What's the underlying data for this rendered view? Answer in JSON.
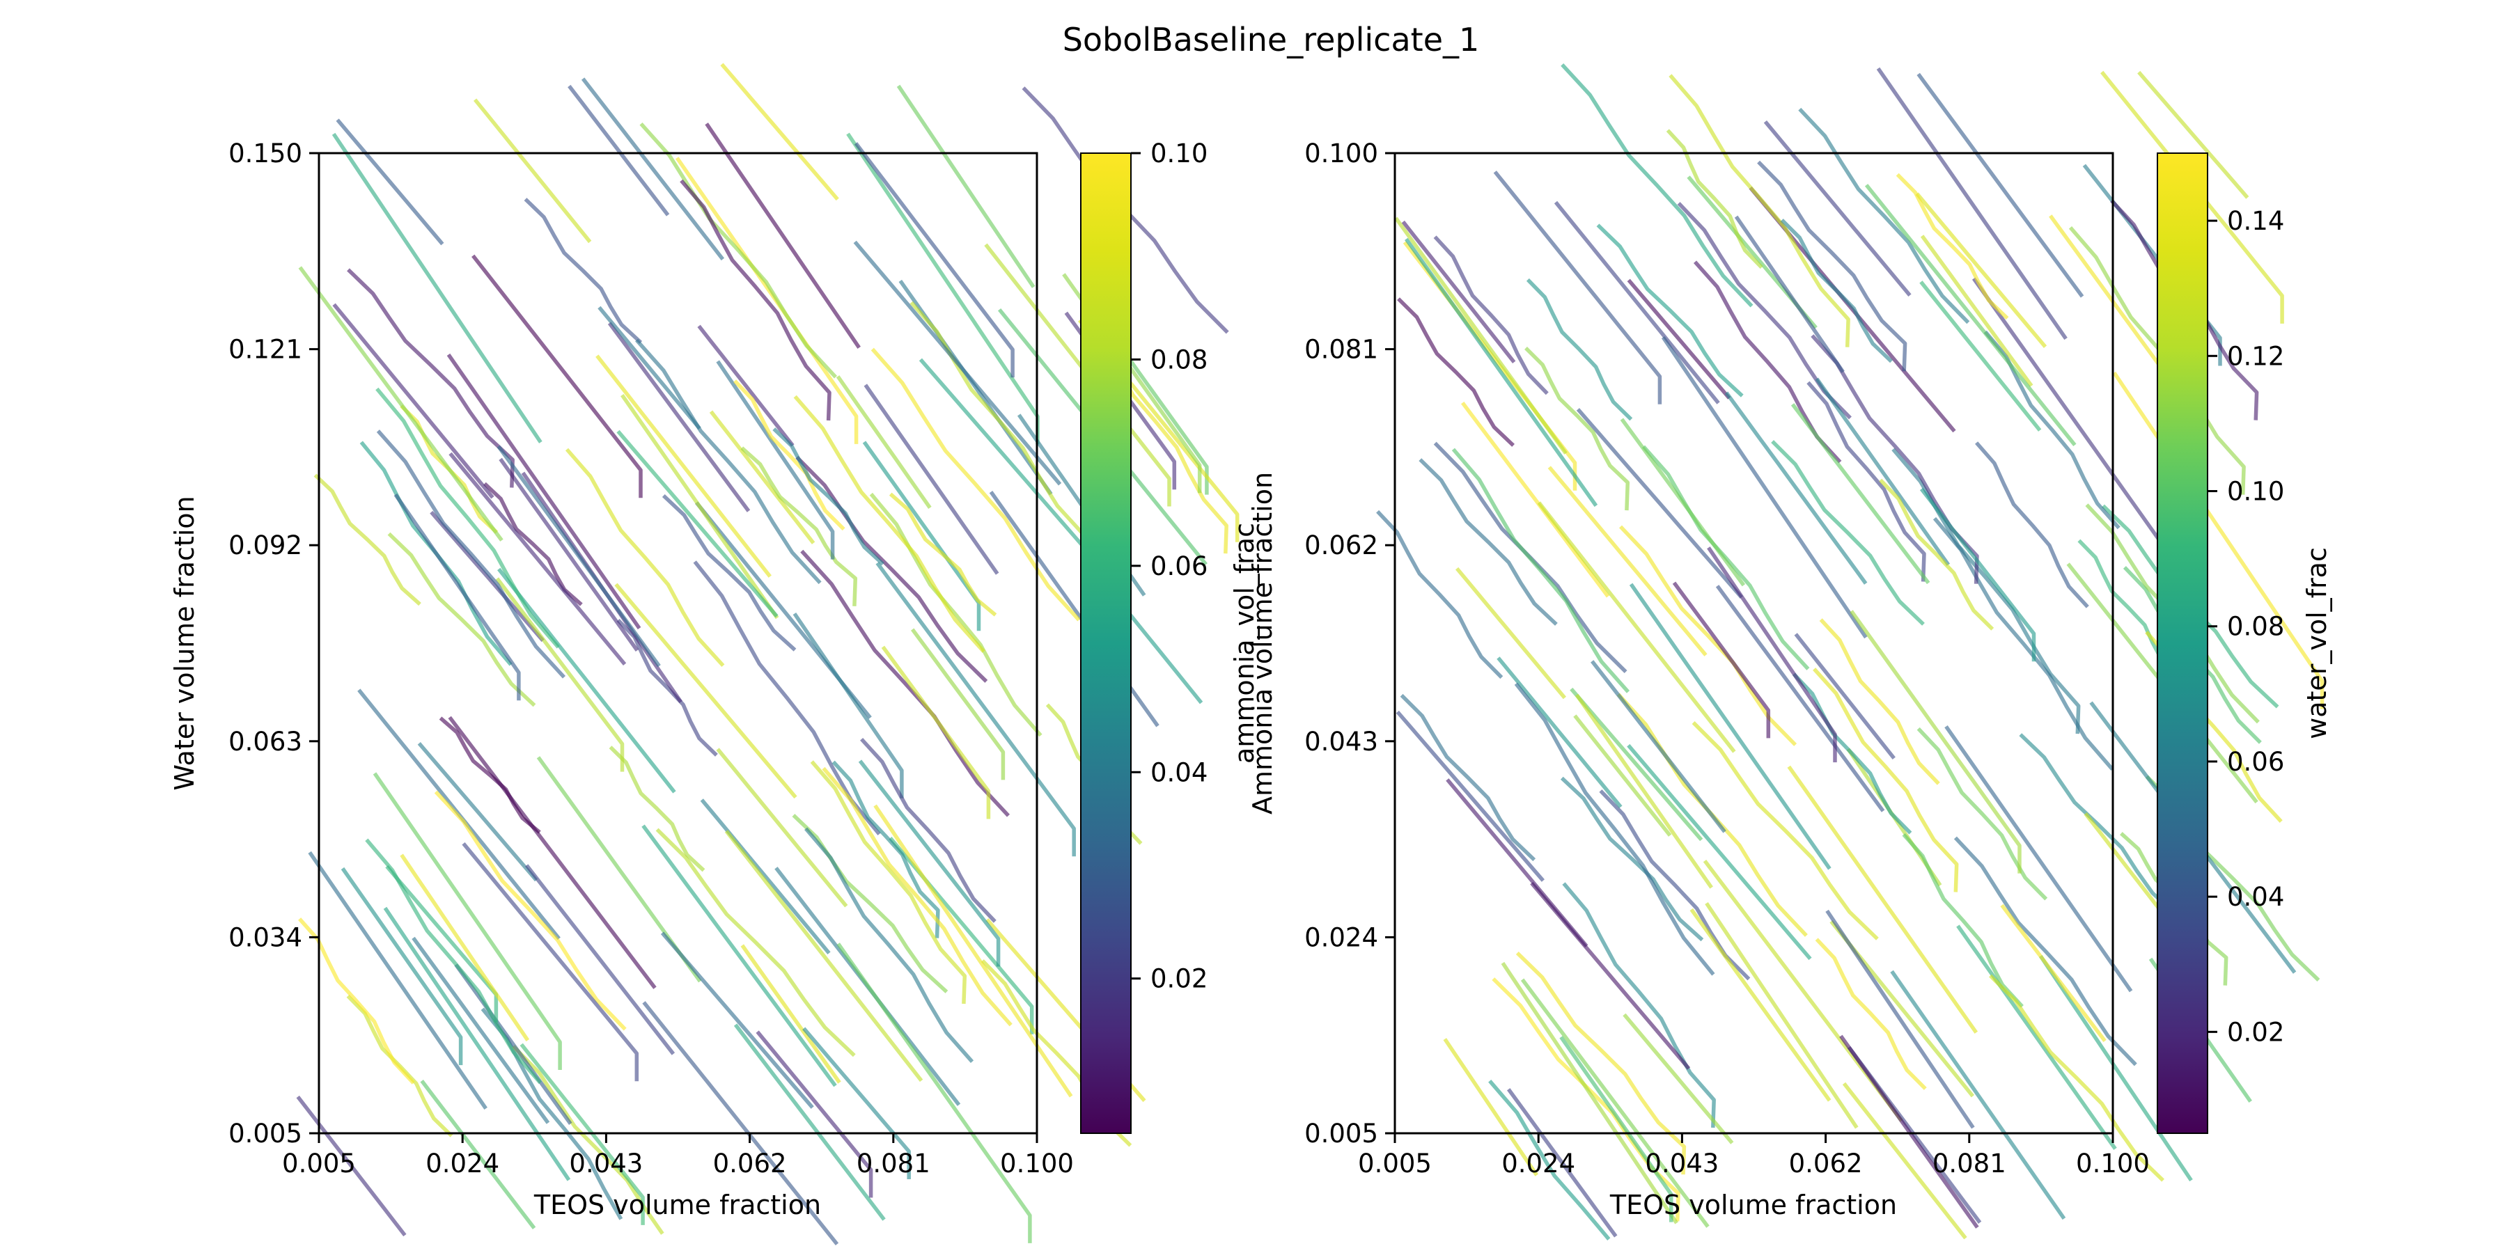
{
  "title": "SobolBaseline_replicate_1",
  "chart_data": [
    {
      "type": "line",
      "panel": "left",
      "xlabel": "TEOS volume fraction",
      "ylabel": "Water volume fraction",
      "xlim": [
        0.005,
        0.1
      ],
      "ylim": [
        0.005,
        0.15
      ],
      "xticks": [
        "0.005",
        "0.024",
        "0.043",
        "0.062",
        "0.081",
        "0.100"
      ],
      "yticks": [
        "0.005",
        "0.034",
        "0.063",
        "0.092",
        "0.121",
        "0.150"
      ],
      "colorbar": {
        "label": "ammonia_vol_frac",
        "colormap": "viridis",
        "range": [
          0.005,
          0.1
        ],
        "ticks": [
          "0.02",
          "0.04",
          "0.06",
          "0.08",
          "0.10"
        ]
      },
      "series_description": "Many short trajectories drifting down-right, each colored by ammonia volume fraction",
      "grid": false
    },
    {
      "type": "line",
      "panel": "right",
      "xlabel": "TEOS volume fraction",
      "ylabel": "Ammonia volume fraction",
      "xlim": [
        0.005,
        0.1
      ],
      "ylim": [
        0.005,
        0.1
      ],
      "xticks": [
        "0.005",
        "0.024",
        "0.043",
        "0.062",
        "0.081",
        "0.100"
      ],
      "yticks": [
        "0.005",
        "0.024",
        "0.043",
        "0.062",
        "0.081",
        "0.100"
      ],
      "colorbar": {
        "label": "water_vol_frac",
        "colormap": "viridis",
        "range": [
          0.005,
          0.15
        ],
        "ticks": [
          "0.02",
          "0.04",
          "0.06",
          "0.08",
          "0.10",
          "0.12",
          "0.14"
        ]
      },
      "series_description": "Many short trajectories drifting down-right, each colored by water volume fraction",
      "grid": false
    }
  ]
}
